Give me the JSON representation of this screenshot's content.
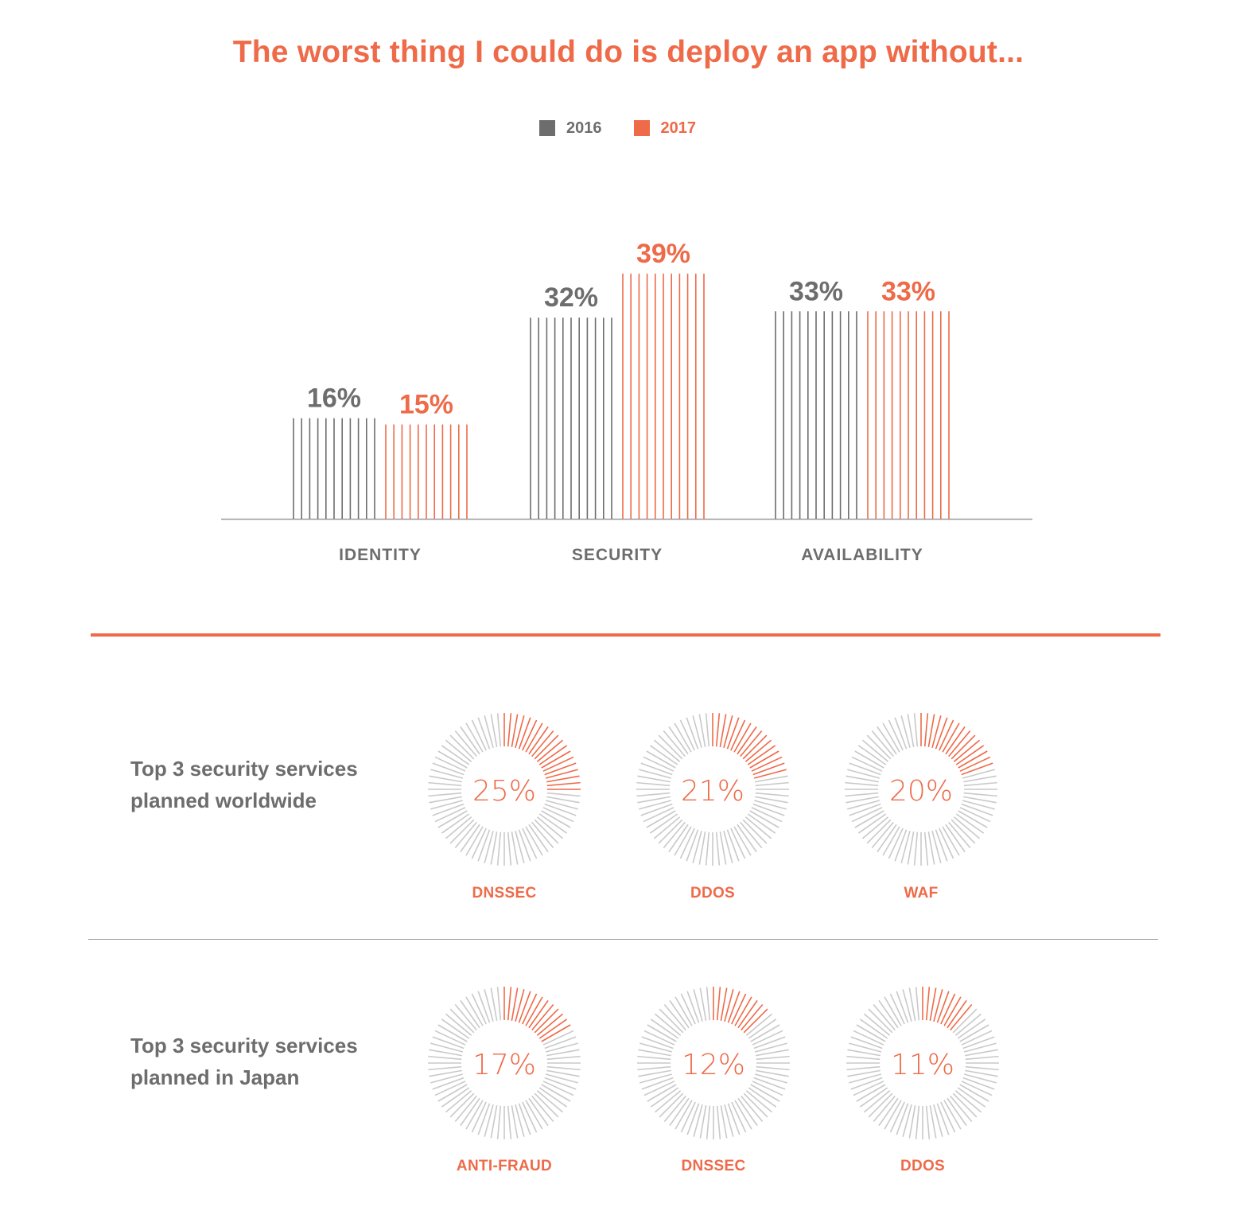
{
  "colors": {
    "accent": "#ee6a48",
    "gray": "#6d6d6d",
    "tick_gray": "#c9c9c9"
  },
  "title": "The worst thing I could do is deploy an app without...",
  "chart_data": [
    {
      "type": "bar",
      "title": "The worst thing I could do is deploy an app without...",
      "categories": [
        "IDENTITY",
        "SECURITY",
        "AVAILABILITY"
      ],
      "series": [
        {
          "name": "2016",
          "values": [
            16,
            32,
            33
          ],
          "labels": [
            "16%",
            "32%",
            "33%"
          ],
          "color": "#6d6d6d"
        },
        {
          "name": "2017",
          "values": [
            15,
            39,
            33
          ],
          "labels": [
            "15%",
            "39%",
            "33%"
          ],
          "color": "#ee6a48"
        }
      ],
      "legend": "top-center",
      "grid": false,
      "ylim": [
        0,
        40
      ]
    },
    {
      "type": "pie",
      "title": "Top 3 security services planned worldwide",
      "categories": [
        "DNSSEC",
        "DDOS",
        "WAF"
      ],
      "values": [
        25,
        21,
        20
      ],
      "labels": [
        "25%",
        "21%",
        "20%"
      ]
    },
    {
      "type": "pie",
      "title": "Top 3 security services planned in Japan",
      "categories": [
        "ANTI-FRAUD",
        "DNSSEC",
        "DDOS"
      ],
      "values": [
        17,
        12,
        11
      ],
      "labels": [
        "17%",
        "12%",
        "11%"
      ]
    }
  ],
  "legend": [
    {
      "label": "2016",
      "color": "#6d6d6d"
    },
    {
      "label": "2017",
      "color": "#ee6a48"
    }
  ],
  "sections": {
    "worldwide": {
      "label_line1": "Top 3 security services",
      "label_line2": "planned worldwide"
    },
    "japan": {
      "label_line1": "Top 3 security services",
      "label_line2": "planned in Japan"
    }
  }
}
